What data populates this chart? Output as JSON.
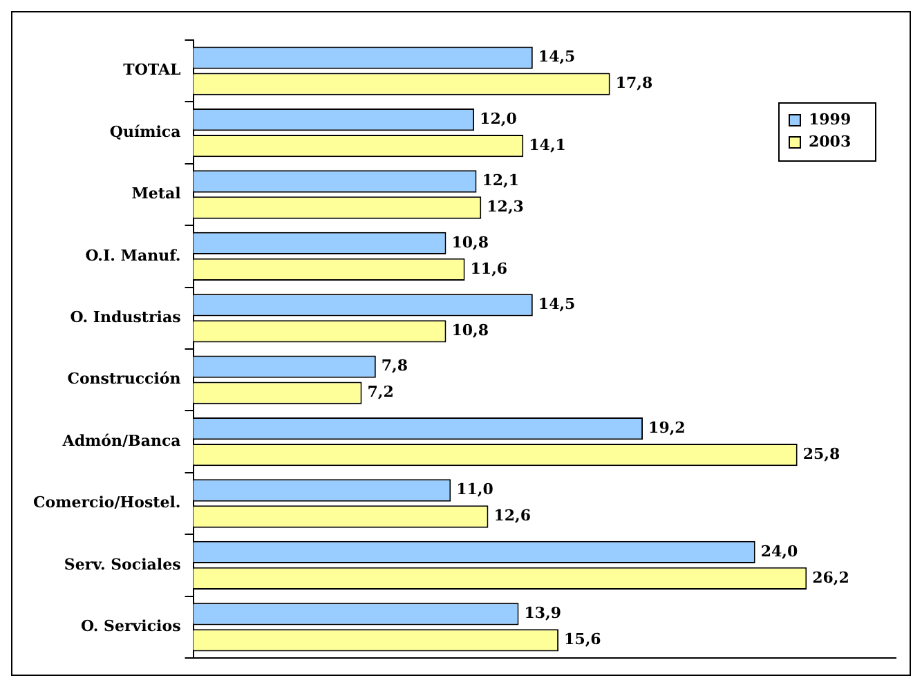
{
  "chart_data": {
    "type": "bar",
    "orientation": "horizontal",
    "categories": [
      "TOTAL",
      "Química",
      "Metal",
      "O.I. Manuf.",
      "O. Industrias",
      "Construcción",
      "Admón/Banca",
      "Comercio/Hostel.",
      "Serv. Sociales",
      "O. Servicios"
    ],
    "series": [
      {
        "name": "1999",
        "color": "#99ccff",
        "values": [
          14.5,
          12.0,
          12.1,
          10.8,
          14.5,
          7.8,
          19.2,
          11.0,
          24.0,
          13.9
        ],
        "value_labels": [
          "14,5",
          "12,0",
          "12,1",
          "10,8",
          "14,5",
          "7,8",
          "19,2",
          "11,0",
          "24,0",
          "13,9"
        ]
      },
      {
        "name": "2003",
        "color": "#ffff99",
        "values": [
          17.8,
          14.1,
          12.3,
          11.6,
          10.8,
          7.2,
          25.8,
          12.6,
          26.2,
          15.6
        ],
        "value_labels": [
          "17,8",
          "14,1",
          "12,3",
          "11,6",
          "10,8",
          "7,2",
          "25,8",
          "12,6",
          "26,2",
          "15,6"
        ]
      }
    ],
    "legend": "top right",
    "grid": false,
    "tick_labels": "y"
  }
}
